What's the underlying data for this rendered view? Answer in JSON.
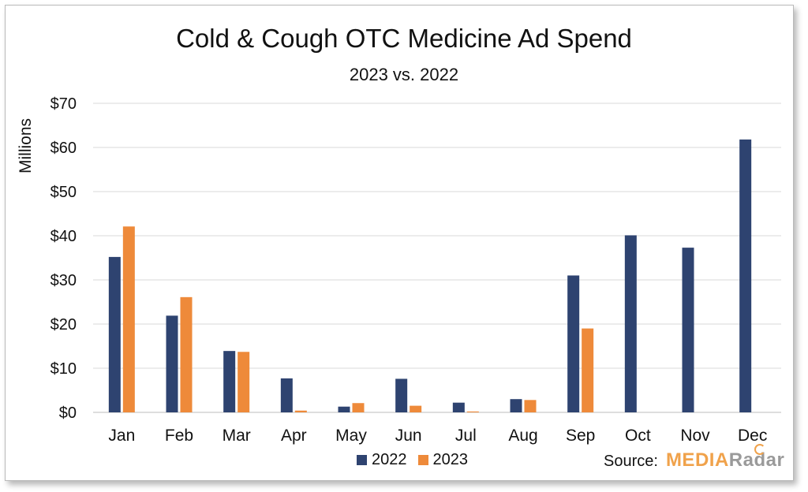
{
  "chart_data": {
    "type": "bar",
    "title": "Cold & Cough OTC Medicine Ad Spend",
    "subtitle": "2023 vs. 2022",
    "ylabel": "Millions",
    "xlabel": "",
    "categories": [
      "Jan",
      "Feb",
      "Mar",
      "Apr",
      "May",
      "Jun",
      "Jul",
      "Aug",
      "Sep",
      "Oct",
      "Nov",
      "Dec"
    ],
    "series": [
      {
        "name": "2022",
        "color": "#2e4370",
        "values": [
          35.2,
          21.9,
          13.9,
          7.7,
          1.3,
          7.6,
          2.2,
          3.0,
          31.0,
          40.1,
          37.3,
          61.8
        ]
      },
      {
        "name": "2023",
        "color": "#ee8a3a",
        "values": [
          42.1,
          26.1,
          13.7,
          0.4,
          2.1,
          1.5,
          0.2,
          2.8,
          19.0,
          null,
          null,
          null
        ]
      }
    ],
    "ylim": [
      0,
      70
    ],
    "yticks": [
      0,
      10,
      20,
      30,
      40,
      50,
      60,
      70
    ],
    "ytick_labels": [
      "$0",
      "$10",
      "$20",
      "$30",
      "$40",
      "$50",
      "$60",
      "$70"
    ],
    "grid": true,
    "legend": "bottom-center"
  },
  "source": {
    "label": "Source:",
    "logo_part1": "MEDIA",
    "logo_part2": "Radar"
  }
}
